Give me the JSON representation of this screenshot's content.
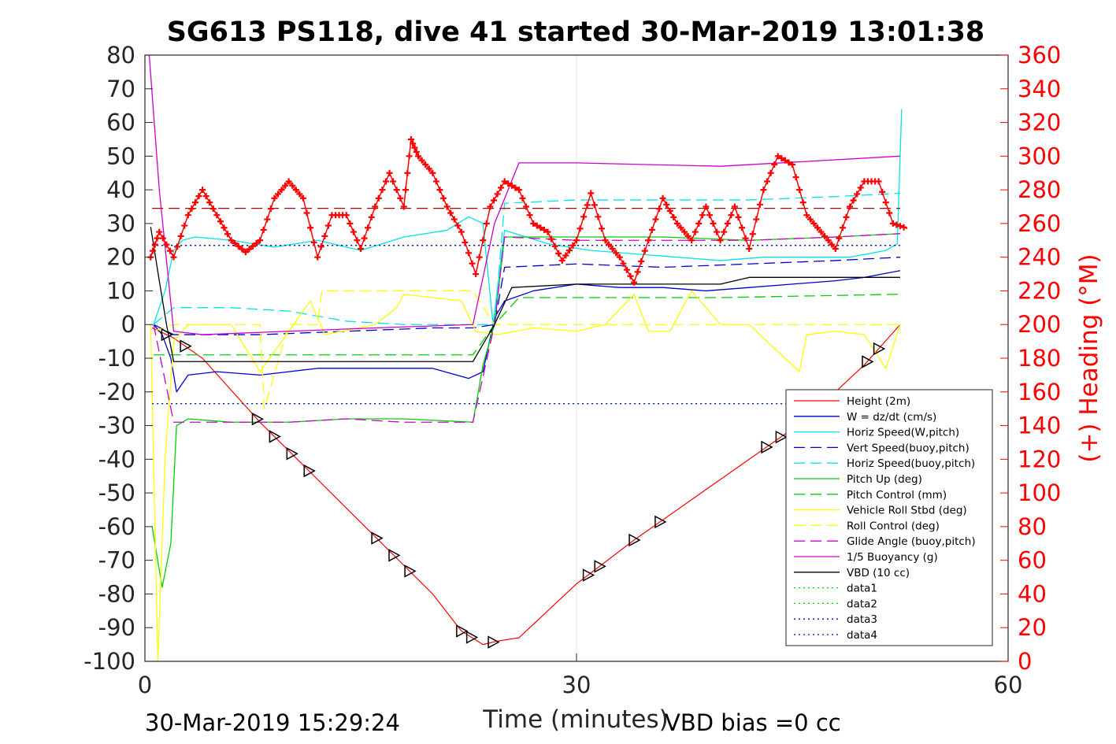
{
  "chart_data": {
    "type": "line",
    "title": "SG613 PS118, dive 41 started 30-Mar-2019 13:01:38",
    "xlabel": "Time (minutes)",
    "ylabel": "",
    "ylabel_right": "(+) Heading (°M)",
    "xlim": [
      0,
      60
    ],
    "ylim": [
      -100,
      80
    ],
    "ylim_right": [
      0,
      360
    ],
    "x_ticks": [
      "0",
      "30",
      "60"
    ],
    "y_ticks": [
      "80",
      "70",
      "60",
      "50",
      "40",
      "30",
      "20",
      "10",
      "0",
      "-10",
      "-20",
      "-30",
      "-40",
      "-50",
      "-60",
      "-70",
      "-80",
      "-90",
      "-100"
    ],
    "y_right_ticks": [
      "360",
      "340",
      "320",
      "300",
      "280",
      "260",
      "240",
      "220",
      "200",
      "180",
      "160",
      "140",
      "120",
      "100",
      "80",
      "60",
      "40",
      "20",
      "0"
    ],
    "grid": "x only",
    "legend_position": "lower right inside",
    "footer_left": "30-Mar-2019 15:29:24",
    "footer_right": "VBD bias =0 cc",
    "legend": [
      {
        "label": "Height (2m)",
        "color": "#ff0000",
        "dash": "solid"
      },
      {
        "label": "W = dz/dt (cm/s)",
        "color": "#0000cc",
        "dash": "solid"
      },
      {
        "label": "Horiz Speed(W,pitch)",
        "color": "#00e5e5",
        "dash": "solid"
      },
      {
        "label": "Vert Speed(buoy,pitch)",
        "color": "#0000cc",
        "dash": "dashed"
      },
      {
        "label": "Horiz Speed(buoy,pitch)",
        "color": "#00e5e5",
        "dash": "dashed"
      },
      {
        "label": "Pitch Up (deg)",
        "color": "#00d000",
        "dash": "solid"
      },
      {
        "label": "Pitch Control (mm)",
        "color": "#00d000",
        "dash": "dashed"
      },
      {
        "label": "Vehicle Roll Stbd (deg)",
        "color": "#ffff00",
        "dash": "solid"
      },
      {
        "label": "Roll Control (deg)",
        "color": "#ffff00",
        "dash": "dashed"
      },
      {
        "label": "Glide Angle (buoy,pitch)",
        "color": "#cc00cc",
        "dash": "dashed"
      },
      {
        "label": "1/5 Buoyancy (g)",
        "color": "#cc00cc",
        "dash": "solid"
      },
      {
        "label": "VBD (10 cc)",
        "color": "#000000",
        "dash": "solid"
      },
      {
        "label": "data1",
        "color": "#00d000",
        "dash": "dotted"
      },
      {
        "label": "data2",
        "color": "#00d000",
        "dash": "dotted"
      },
      {
        "label": "data3",
        "color": "#0000cc",
        "dash": "dotted"
      },
      {
        "label": "data4",
        "color": "#0000cc",
        "dash": "dotted"
      }
    ],
    "series": [
      {
        "name": "Height (2m)",
        "color": "#ff0000",
        "axis": "left",
        "x": [
          0.5,
          2,
          4,
          8,
          12,
          16,
          20,
          22,
          23.5,
          24.5,
          26,
          28,
          30,
          34,
          38,
          42,
          46,
          50,
          52.5
        ],
        "y": [
          -1,
          -4,
          -10,
          -29,
          -46,
          -63,
          -80,
          -91,
          -95,
          -94,
          -93,
          -85,
          -77,
          -64,
          -52,
          -40,
          -28,
          -12,
          0
        ]
      },
      {
        "name": "W = dz/dt (cm/s)",
        "color": "#0000cc",
        "axis": "left",
        "x": [
          0.6,
          1.2,
          1.8,
          2.2,
          3,
          5,
          8,
          10,
          12,
          14,
          16,
          18,
          20,
          22.5,
          23.5,
          24.3,
          25,
          27,
          30,
          33,
          36,
          39,
          42,
          45,
          48,
          50,
          52.5
        ],
        "y": [
          0,
          -3,
          -10,
          -20,
          -15,
          -14,
          -15,
          -14,
          -13,
          -13,
          -13,
          -13,
          -13,
          -16,
          -14,
          2,
          7,
          10,
          12,
          11,
          11,
          10,
          11,
          12,
          13,
          14,
          16
        ]
      },
      {
        "name": "Horiz Speed(W,pitch)",
        "color": "#00e5e5",
        "axis": "left",
        "x": [
          0.6,
          1.4,
          2,
          2.6,
          3.5,
          6,
          9,
          12,
          15,
          18,
          21,
          22.5,
          23.5,
          24.2,
          25,
          28,
          31,
          34,
          37,
          40,
          43,
          46,
          49,
          51.5,
          52.3,
          52.6
        ],
        "y": [
          0,
          10,
          22,
          25,
          26,
          25,
          23,
          25,
          22,
          26,
          28,
          32,
          30,
          0,
          28,
          24,
          22,
          21,
          20,
          19,
          20,
          20,
          20,
          22,
          24,
          64
        ]
      },
      {
        "name": "Vert Speed(buoy,pitch)",
        "color": "#0000cc",
        "axis": "left",
        "dash": "dashed",
        "x": [
          0.6,
          2,
          8,
          14,
          20,
          22.8,
          24.3,
          25,
          30,
          36,
          42,
          48,
          52.5
        ],
        "y": [
          0,
          -3,
          -3,
          -2,
          -1,
          -1,
          0,
          17,
          18,
          17,
          18,
          19,
          20
        ]
      },
      {
        "name": "Horiz Speed(buoy,pitch)",
        "color": "#00e5e5",
        "axis": "left",
        "dash": "dashed",
        "x": [
          0.6,
          2,
          6,
          10,
          14,
          18,
          22.8,
          24.3,
          25,
          30,
          36,
          42,
          48,
          52.5
        ],
        "y": [
          0,
          5,
          5,
          4,
          1,
          0,
          0,
          0,
          36,
          37,
          37,
          37,
          38,
          39
        ]
      },
      {
        "name": "Pitch Up (deg)",
        "color": "#00d000",
        "axis": "left",
        "x": [
          0.5,
          1.2,
          1.8,
          2.2,
          3,
          6,
          10,
          14,
          18,
          22.8,
          23.5,
          24.3,
          25,
          30,
          36,
          42,
          48,
          52.5
        ],
        "y": [
          -60,
          -78,
          -65,
          -30,
          -28,
          -29,
          -29,
          -28,
          -28,
          -29,
          -12,
          0,
          26,
          26,
          26,
          25,
          26,
          27
        ]
      },
      {
        "name": "Pitch Control (mm)",
        "color": "#00d000",
        "axis": "left",
        "dash": "dashed",
        "x": [
          0.6,
          2,
          22.8,
          24.3,
          26,
          30,
          40,
          52.5
        ],
        "y": [
          -9,
          -9,
          -9,
          0,
          8,
          8,
          8,
          9
        ]
      },
      {
        "name": "Vehicle Roll Stbd (deg)",
        "color": "#ffff00",
        "axis": "left",
        "x": [
          0.4,
          0.9,
          1.4,
          2,
          3,
          6,
          8,
          10,
          11.5,
          12.5,
          16,
          17.5,
          18,
          20,
          22,
          23,
          24.5,
          27,
          30,
          32,
          34,
          35,
          36.5,
          38,
          40,
          42,
          45.5,
          46,
          48,
          50,
          51.5,
          52.5
        ],
        "y": [
          0,
          -100,
          -40,
          -5,
          0,
          0,
          -14,
          -2,
          7,
          -3,
          0,
          5,
          9,
          8,
          7,
          -2,
          -3,
          -1,
          -2,
          0,
          9,
          -2,
          -2,
          10,
          0,
          0,
          -14,
          -3,
          -2,
          -3,
          -13,
          0
        ]
      },
      {
        "name": "Roll Control (deg)",
        "color": "#ffff00",
        "axis": "left",
        "dash": "dashed",
        "x": [
          0.6,
          2,
          6,
          8,
          8.3,
          10,
          12,
          12.3,
          16,
          19,
          22.8,
          24.3,
          28,
          32,
          36,
          40,
          44,
          48,
          52.5
        ],
        "y": [
          -2,
          0,
          0,
          0,
          -25,
          0,
          0,
          10,
          10,
          10,
          10,
          0,
          0,
          0,
          0,
          0,
          0,
          0,
          0
        ]
      },
      {
        "name": "Glide Angle (buoy,pitch)",
        "color": "#cc00cc",
        "axis": "left",
        "dash": "dashed",
        "x": [
          0.6,
          2,
          6,
          10,
          14,
          18,
          22.8,
          24.3,
          25,
          30,
          36,
          42,
          48,
          52.5
        ],
        "y": [
          0,
          -29,
          -29,
          -29,
          -28,
          -29,
          -29,
          0,
          26,
          25,
          25,
          25,
          26,
          27
        ]
      },
      {
        "name": "1/5 Buoyancy (g)",
        "color": "#cc00cc",
        "axis": "left",
        "x": [
          0.3,
          1,
          2,
          4,
          10,
          16,
          22.8,
          24.3,
          26,
          30,
          40,
          52.5
        ],
        "y": [
          80,
          40,
          -2,
          -3,
          -2,
          -1,
          0,
          30,
          48,
          48,
          47,
          50
        ]
      },
      {
        "name": "VBD (10 cc)",
        "color": "#000000",
        "axis": "left",
        "x": [
          0.4,
          1,
          1.5,
          2,
          22.8,
          24.3,
          25.5,
          30,
          40,
          42,
          52.5
        ],
        "y": [
          29,
          13,
          0,
          -11,
          -11,
          0,
          11,
          12,
          12,
          14,
          14
        ]
      },
      {
        "name": "data1",
        "color": "#00d000",
        "axis": "left",
        "dash": "dotted",
        "x": [
          0.5,
          52.5
        ],
        "y": [
          23.5,
          23.5
        ]
      },
      {
        "name": "data2",
        "color": "#00d000",
        "axis": "left",
        "dash": "dotted",
        "x": [
          0.5,
          52.5
        ],
        "y": [
          -23.5,
          -23.5
        ]
      },
      {
        "name": "data3",
        "color": "#0000cc",
        "axis": "left",
        "dash": "dotted",
        "x": [
          0.5,
          52.5
        ],
        "y": [
          23.5,
          23.5
        ]
      },
      {
        "name": "data4",
        "color": "#0000cc",
        "axis": "left",
        "dash": "dotted",
        "x": [
          0.5,
          52.5
        ],
        "y": [
          -23.5,
          -23.5
        ]
      },
      {
        "name": "Target heading",
        "color": "#b00000",
        "axis": "right",
        "dash": "dashed",
        "x": [
          0.5,
          52.5
        ],
        "y": [
          269,
          269
        ]
      },
      {
        "name": "(+) Heading (°M)",
        "color": "#ff0000",
        "axis": "right",
        "marker": "+",
        "x": [
          0.4,
          1,
          2,
          3,
          4,
          5,
          6,
          7,
          8,
          9,
          10,
          11,
          12,
          13,
          14,
          15,
          16,
          17,
          18,
          18.5,
          19,
          20,
          21,
          22,
          23,
          24,
          25,
          26,
          27,
          28,
          29,
          30,
          31,
          32,
          33,
          34,
          35,
          36,
          37,
          38,
          39,
          40,
          41,
          42,
          43,
          44,
          45,
          46,
          47,
          48,
          49,
          50,
          51,
          52,
          53
        ],
        "y": [
          240,
          255,
          240,
          265,
          280,
          265,
          250,
          243,
          250,
          275,
          285,
          275,
          240,
          265,
          265,
          245,
          270,
          290,
          270,
          310,
          300,
          290,
          270,
          255,
          230,
          270,
          285,
          280,
          260,
          255,
          238,
          250,
          278,
          250,
          240,
          225,
          250,
          275,
          260,
          250,
          270,
          250,
          270,
          245,
          280,
          300,
          295,
          265,
          255,
          245,
          270,
          285,
          285,
          260,
          257
        ]
      }
    ]
  }
}
